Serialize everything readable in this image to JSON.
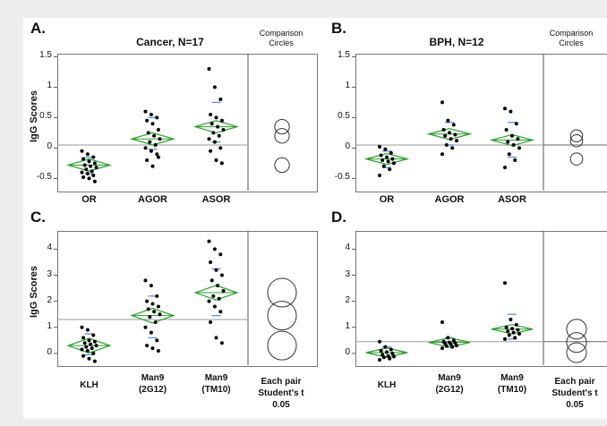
{
  "colors": {
    "mean_diamond": "#2aa02a",
    "quantile_tick": "#5b8fe0",
    "grand_mean": "#999999",
    "points": "#000000",
    "comparison_circle": "#333333"
  },
  "y_label": "IgG Scores",
  "comparison_header": "Comparison Circles",
  "legend_note": [
    "Each pair",
    "Student's t",
    "0.05"
  ],
  "chart_data": [
    {
      "type": "scatter",
      "panel": "A.",
      "title": "Cancer, N=17",
      "categories": [
        "OR",
        "AGOR",
        "ASOR"
      ],
      "yticks": [
        "-0.5",
        "0",
        "0.5",
        "1",
        "1.5"
      ],
      "ylim": [
        -0.7,
        1.55
      ],
      "grand_mean": 0.05,
      "means": [
        -0.28,
        0.15,
        0.35
      ],
      "diamond_half": [
        0.1,
        0.1,
        0.1
      ],
      "quartiles": [
        [
          -0.42,
          -0.15
        ],
        [
          -0.02,
          0.5
        ],
        [
          0.1,
          0.75
        ]
      ],
      "points": [
        [
          -0.05,
          -0.1,
          -0.15,
          -0.18,
          -0.22,
          -0.25,
          -0.28,
          -0.3,
          -0.32,
          -0.35,
          -0.38,
          -0.4,
          -0.42,
          -0.45,
          -0.48,
          -0.5,
          -0.55
        ],
        [
          0.6,
          0.55,
          0.5,
          0.45,
          0.4,
          0.3,
          0.25,
          0.2,
          0.15,
          0.1,
          0.05,
          0.0,
          -0.05,
          -0.1,
          -0.2,
          -0.3,
          -0.15
        ],
        [
          1.3,
          1.0,
          0.8,
          0.55,
          0.5,
          0.45,
          0.4,
          0.35,
          0.3,
          0.25,
          0.2,
          0.15,
          0.1,
          0.0,
          -0.05,
          -0.2,
          -0.25
        ]
      ],
      "circles": [
        0.35,
        0.2,
        -0.28
      ],
      "circle_r": 0.12
    },
    {
      "type": "scatter",
      "panel": "B.",
      "title": "BPH, N=12",
      "categories": [
        "OR",
        "AGOR",
        "ASOR"
      ],
      "yticks": [
        "-0.5",
        "0",
        "0.5",
        "1",
        "1.5"
      ],
      "ylim": [
        -0.7,
        1.55
      ],
      "grand_mean": 0.05,
      "means": [
        -0.18,
        0.23,
        0.13
      ],
      "diamond_half": [
        0.09,
        0.09,
        0.09
      ],
      "quartiles": [
        [
          -0.32,
          -0.05
        ],
        [
          0.05,
          0.42
        ],
        [
          -0.15,
          0.42
        ]
      ],
      "points": [
        [
          0.02,
          -0.02,
          -0.08,
          -0.12,
          -0.15,
          -0.18,
          -0.2,
          -0.22,
          -0.25,
          -0.3,
          -0.35,
          -0.45
        ],
        [
          0.75,
          0.45,
          0.38,
          0.3,
          0.25,
          0.22,
          0.2,
          0.15,
          0.12,
          0.05,
          0.0,
          -0.1
        ],
        [
          0.65,
          0.6,
          0.4,
          0.3,
          0.2,
          0.15,
          0.1,
          0.05,
          0.0,
          -0.1,
          -0.2,
          -0.32
        ]
      ],
      "circles": [
        0.2,
        0.12,
        -0.18
      ],
      "circle_r": 0.1
    },
    {
      "type": "scatter",
      "panel": "C.",
      "title": "",
      "categories": [
        "KLH",
        "Man9\n(2G12)",
        "Man9\n(TM10)"
      ],
      "yticks": [
        "0",
        "1",
        "2",
        "3",
        "4"
      ],
      "ylim": [
        -0.45,
        4.7
      ],
      "grand_mean": 1.3,
      "means": [
        0.3,
        1.45,
        2.33
      ],
      "diamond_half": [
        0.28,
        0.28,
        0.28
      ],
      "quartiles": [
        [
          -0.05,
          0.75
        ],
        [
          0.6,
          2.2
        ],
        [
          1.45,
          3.25
        ]
      ],
      "points": [
        [
          1.0,
          0.9,
          0.7,
          0.6,
          0.5,
          0.45,
          0.4,
          0.35,
          0.3,
          0.25,
          0.2,
          0.15,
          0.1,
          0.0,
          -0.1,
          -0.2,
          -0.3
        ],
        [
          2.8,
          2.6,
          2.2,
          2.0,
          1.9,
          1.8,
          1.7,
          1.6,
          1.5,
          1.4,
          1.2,
          1.0,
          0.8,
          0.5,
          0.3,
          0.2,
          0.1
        ],
        [
          4.3,
          4.0,
          3.8,
          3.5,
          3.2,
          3.0,
          2.8,
          2.6,
          2.4,
          2.2,
          2.1,
          2.0,
          1.8,
          1.6,
          1.2,
          0.6,
          0.4
        ]
      ],
      "circles": [
        2.33,
        1.45,
        0.3
      ],
      "circle_r": 0.55
    },
    {
      "type": "scatter",
      "panel": "D.",
      "title": "",
      "categories": [
        "KLH",
        "Man9\n(2G12)",
        "Man9\n(TM10)"
      ],
      "yticks": [
        "0",
        "1",
        "2",
        "3",
        "4"
      ],
      "ylim": [
        -0.45,
        4.7
      ],
      "grand_mean": 0.45,
      "means": [
        0.03,
        0.42,
        0.93
      ],
      "diamond_half": [
        0.18,
        0.18,
        0.18
      ],
      "quartiles": [
        [
          -0.12,
          0.25
        ],
        [
          0.25,
          0.6
        ],
        [
          0.55,
          1.5
        ]
      ],
      "points": [
        [
          0.45,
          0.25,
          0.15,
          0.1,
          0.05,
          0.0,
          -0.05,
          -0.1,
          -0.12,
          -0.15,
          -0.2,
          -0.25
        ],
        [
          1.2,
          0.6,
          0.5,
          0.45,
          0.42,
          0.4,
          0.38,
          0.35,
          0.3,
          0.28,
          0.25,
          0.2
        ],
        [
          2.7,
          1.3,
          1.1,
          1.0,
          0.95,
          0.9,
          0.85,
          0.8,
          0.75,
          0.7,
          0.6,
          0.55
        ]
      ],
      "circles": [
        0.93,
        0.42,
        0.03
      ],
      "circle_r": 0.38
    }
  ]
}
